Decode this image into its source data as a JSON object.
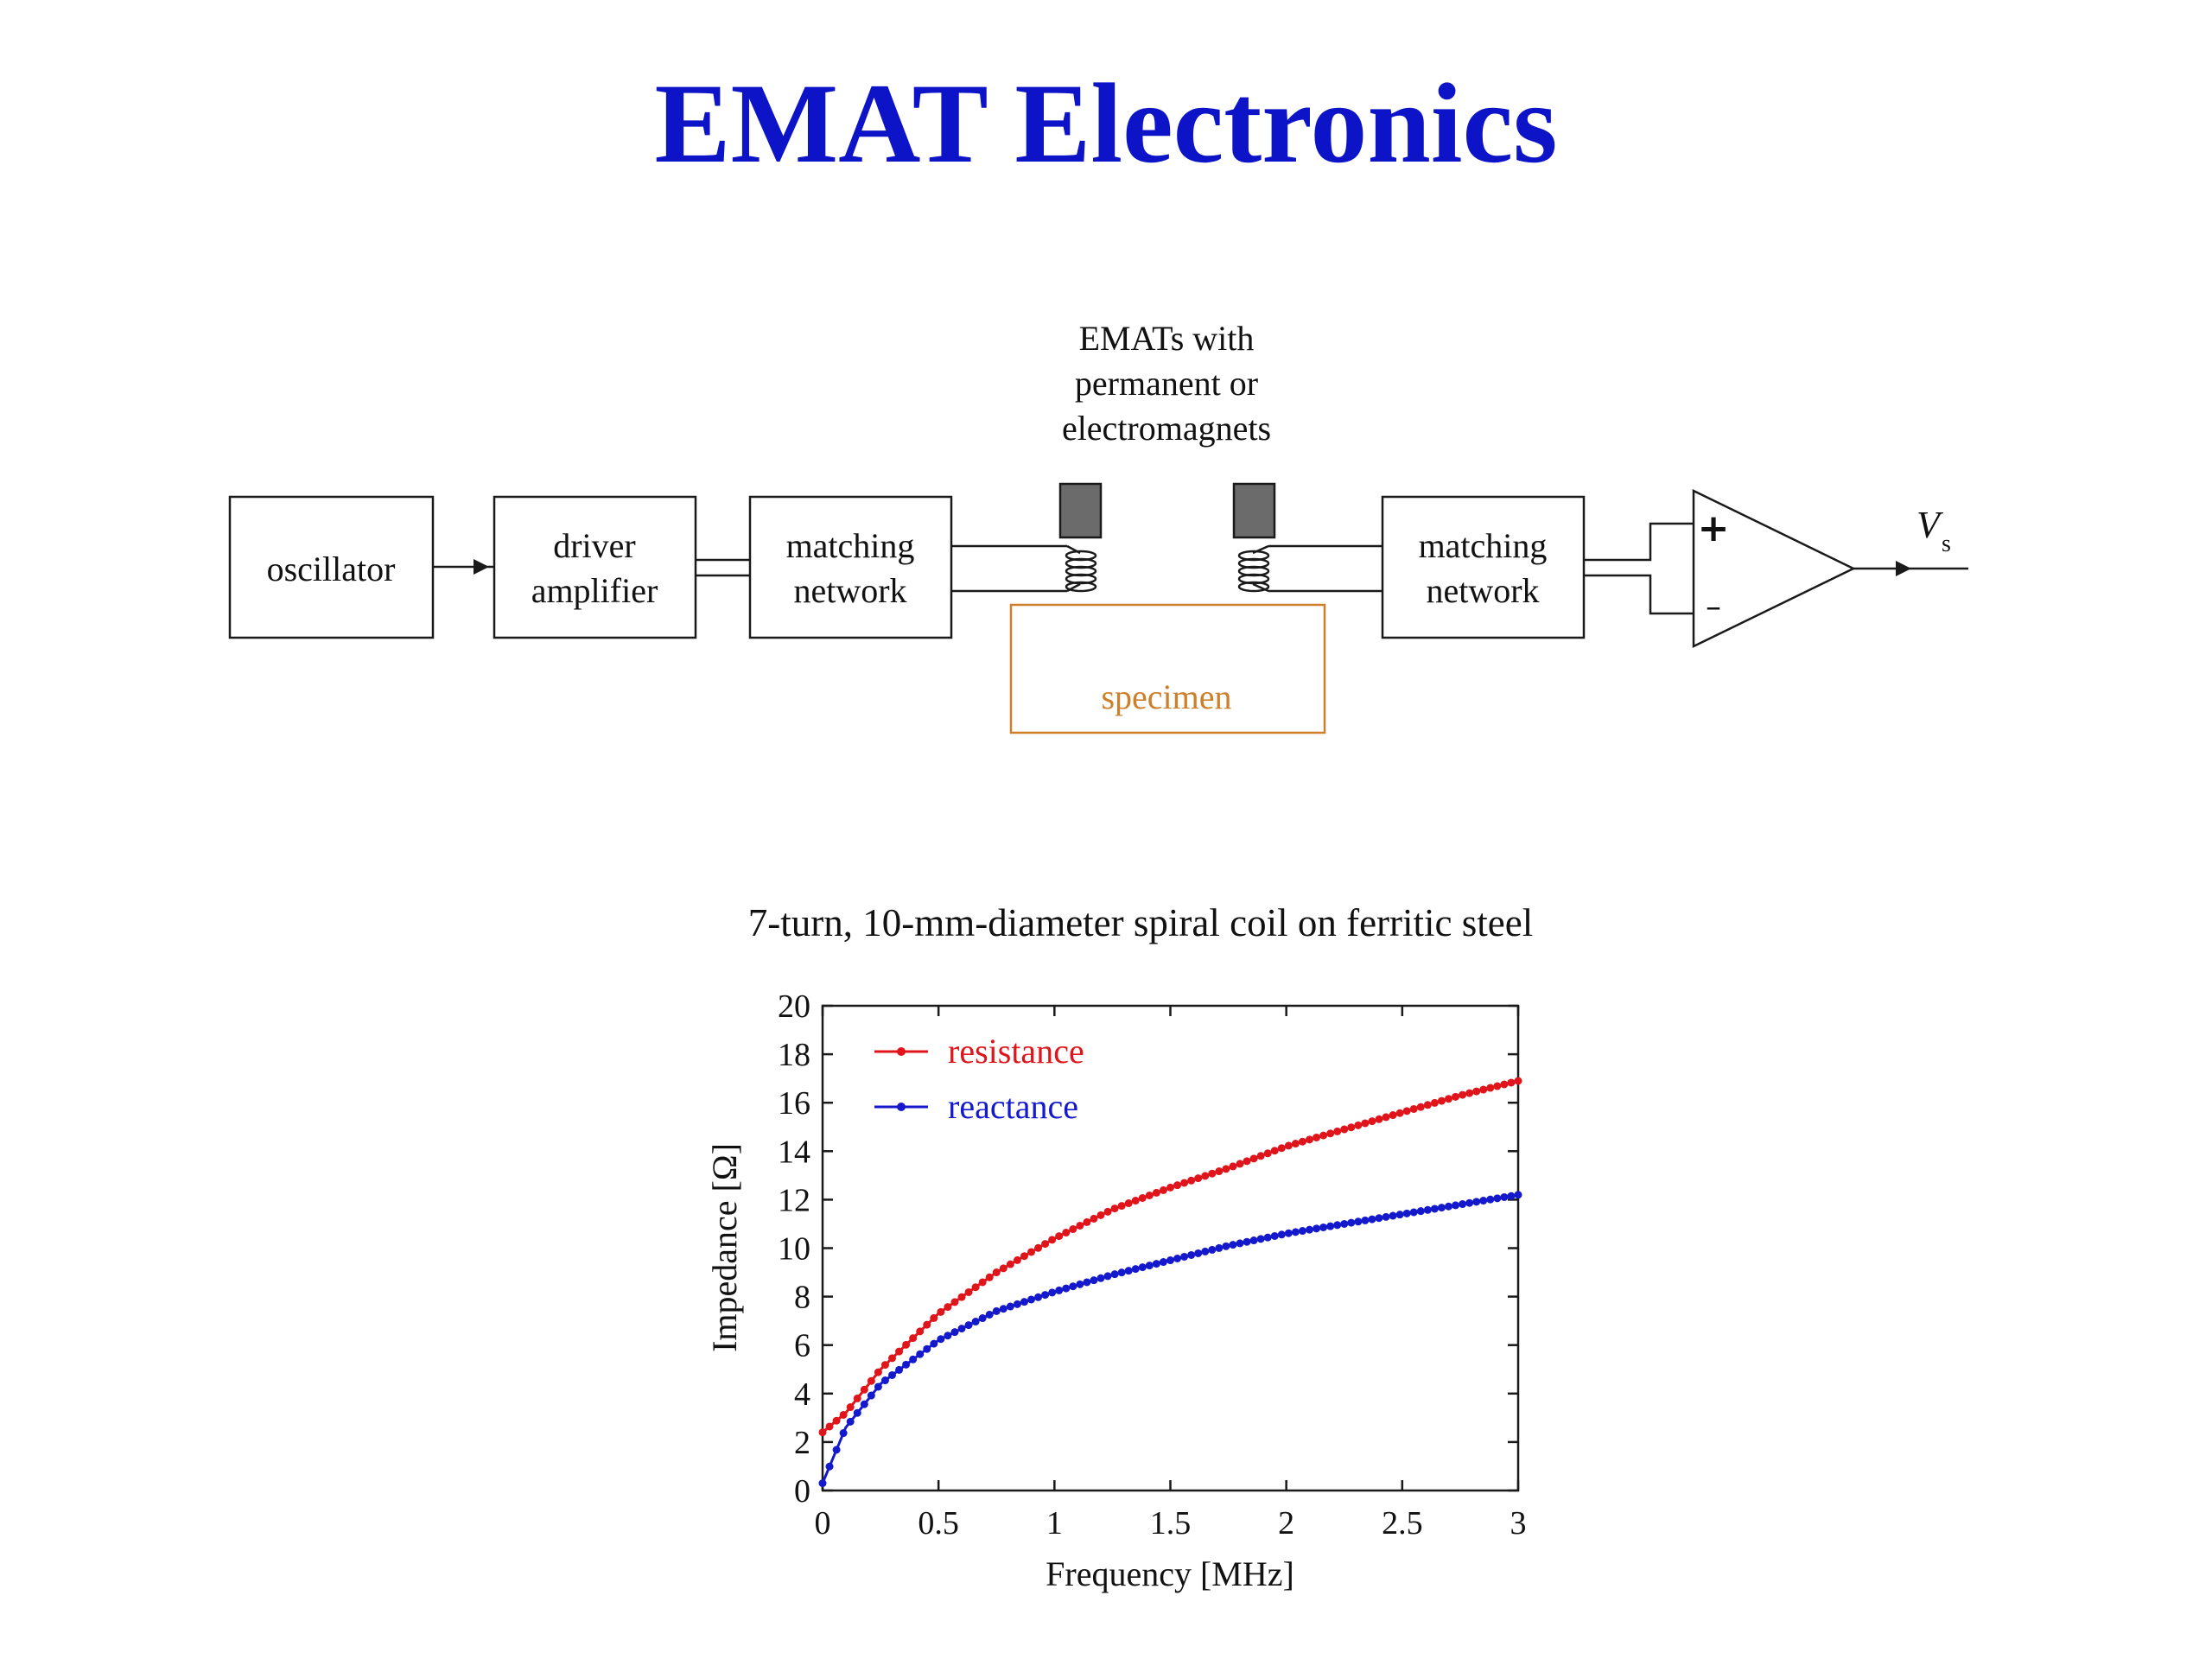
{
  "title": "EMAT Electronics",
  "diagram": {
    "oscillator": "oscillator",
    "driver_line1": "driver",
    "driver_line2": "amplifier",
    "match_tx_line1": "matching",
    "match_tx_line2": "network",
    "match_rx_line1": "matching",
    "match_rx_line2": "network",
    "emat_label_line1": "EMATs with",
    "emat_label_line2": "permanent or",
    "emat_label_line3": "electromagnets",
    "specimen": "specimen",
    "amp_plus": "+",
    "amp_minus": "–",
    "output_symbol": "V",
    "output_subscript": "s",
    "colors": {
      "specimen": "#cd7f2a",
      "magnet": "#6b6b6b"
    }
  },
  "chart_data": {
    "type": "line",
    "title": "7-turn, 10-mm-diameter spiral coil on ferritic steel",
    "xlabel": "Frequency [MHz]",
    "ylabel": "Impedance [Ω]",
    "xlim": [
      0,
      3
    ],
    "ylim": [
      0,
      20
    ],
    "xticks": [
      "0",
      "0.5",
      "1",
      "1.5",
      "2",
      "2.5",
      "3"
    ],
    "yticks": [
      "0",
      "2",
      "4",
      "6",
      "8",
      "10",
      "12",
      "14",
      "16",
      "18",
      "20"
    ],
    "legend_position": "top-left",
    "grid": false,
    "x": [
      0,
      0.1,
      0.25,
      0.5,
      0.75,
      1.0,
      1.25,
      1.5,
      1.75,
      2.0,
      2.25,
      2.5,
      2.75,
      3.0
    ],
    "series": [
      {
        "name": "resistance",
        "color": "#e0151b",
        "values": [
          2.4,
          3.2,
          5.0,
          7.3,
          9.0,
          10.4,
          11.6,
          12.5,
          13.3,
          14.2,
          14.9,
          15.6,
          16.3,
          16.9
        ]
      },
      {
        "name": "reactance",
        "color": "#1419cc",
        "values": [
          0.3,
          2.6,
          4.4,
          6.2,
          7.4,
          8.2,
          8.9,
          9.5,
          10.1,
          10.6,
          11.0,
          11.4,
          11.8,
          12.2
        ]
      }
    ]
  }
}
